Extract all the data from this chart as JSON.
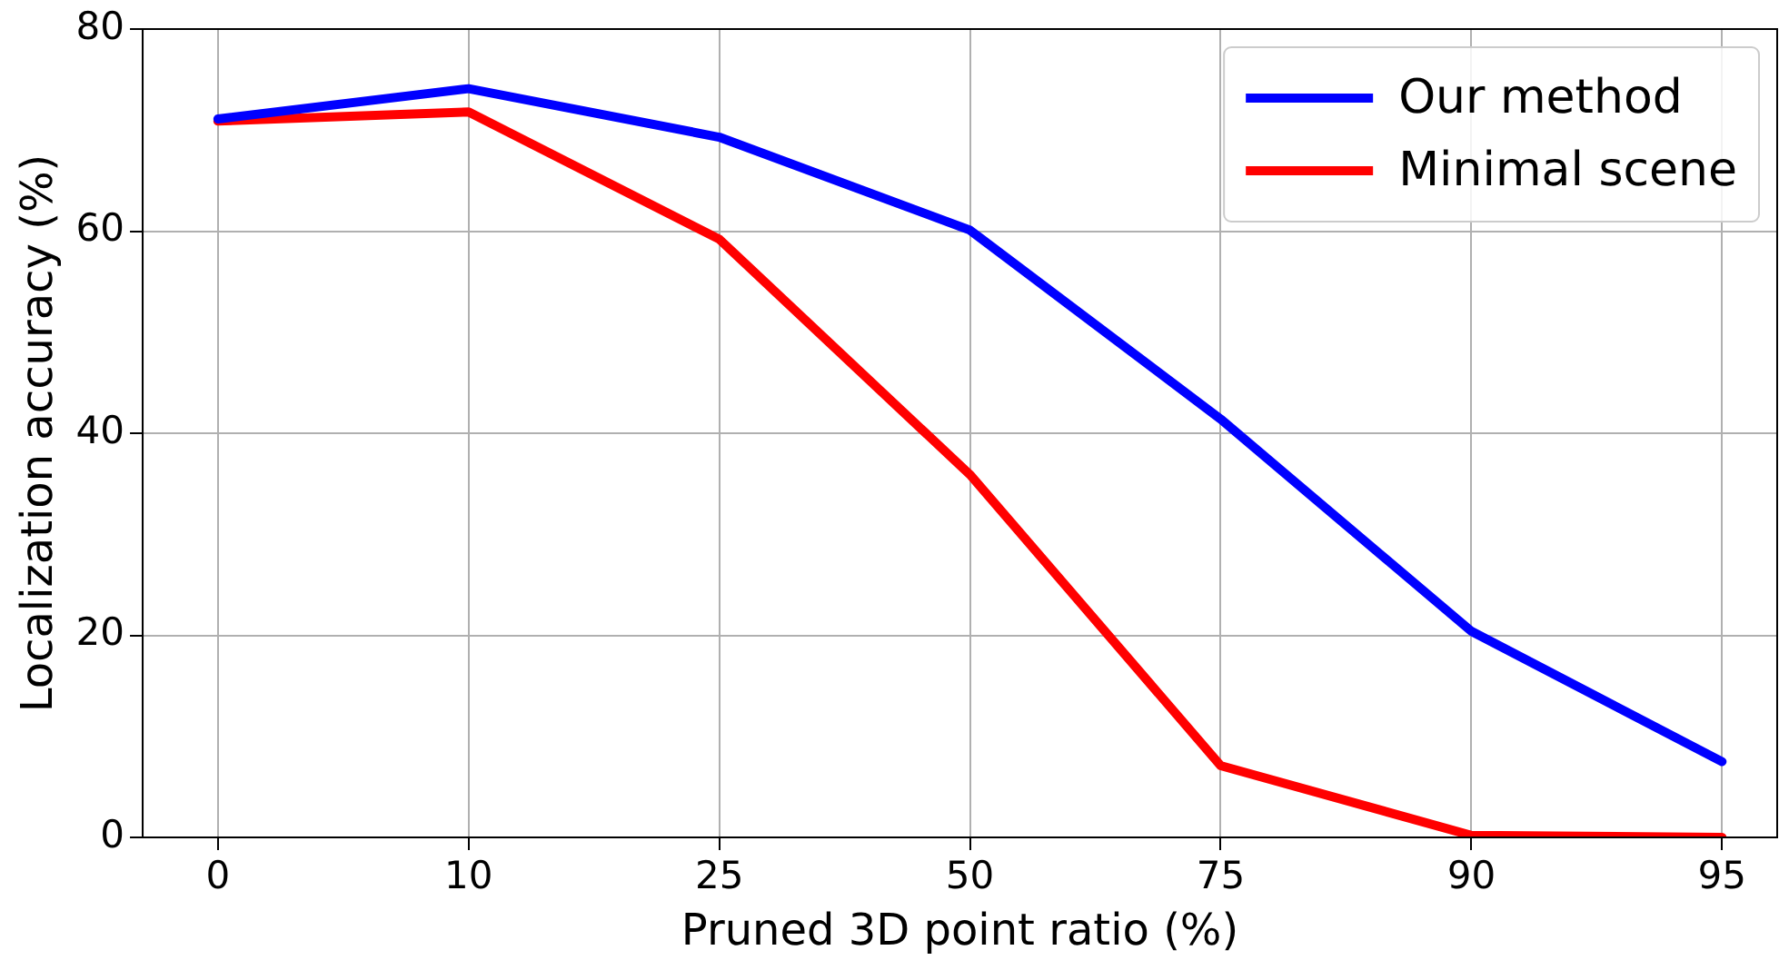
{
  "chart_data": {
    "type": "line",
    "xlabel": "Pruned 3D point ratio (%)",
    "ylabel": "Localization accuracy (%)",
    "categories": [
      "0",
      "10",
      "25",
      "50",
      "75",
      "90",
      "95"
    ],
    "series": [
      {
        "name": "Our method",
        "color": "#0000ff",
        "values": [
          71.1,
          74.1,
          69.3,
          60.1,
          41.4,
          20.4,
          7.5
        ]
      },
      {
        "name": "Minimal scene",
        "color": "#ff0000",
        "values": [
          70.9,
          71.8,
          59.2,
          35.9,
          7.1,
          0.2,
          0
        ]
      }
    ],
    "ylim": [
      0,
      80
    ],
    "yticks": [
      0,
      20,
      40,
      60,
      80
    ],
    "grid": true,
    "legend": "top right",
    "marker": "none",
    "line_style": "solid"
  }
}
